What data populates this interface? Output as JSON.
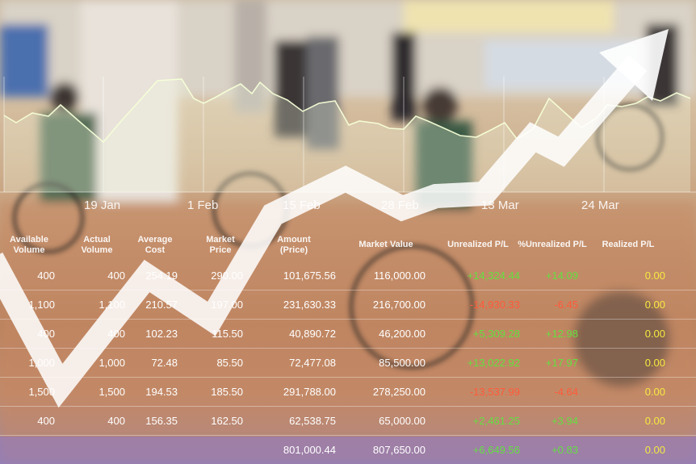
{
  "chart_data": {
    "type": "area",
    "x_labels": [
      "19 Jan",
      "1 Feb",
      "15 Feb",
      "28 Feb",
      "13 Mar",
      "24 Mar"
    ]
  },
  "table": {
    "headers": [
      "Available\nVolume",
      "Actual\nVolume",
      "Average\nCost",
      "Market\nPrice",
      "Amount\n(Price)",
      "Market Value",
      "Unrealized P/L",
      "%Unrealized P/L",
      "Realized P/L"
    ],
    "rows": [
      [
        "400",
        "400",
        "254.19",
        "290.00",
        "101,675.56",
        "116,000.00",
        "+14,324.44",
        "+14.09",
        "0.00"
      ],
      [
        "1,100",
        "1,100",
        "210.57",
        "197.00",
        "231,630.33",
        "216,700.00",
        "-14,930.33",
        "-6.45",
        "0.00"
      ],
      [
        "400",
        "400",
        "102.23",
        "115.50",
        "40,890.72",
        "46,200.00",
        "+5,309.28",
        "+12.98",
        "0.00"
      ],
      [
        "1,000",
        "1,000",
        "72.48",
        "85.50",
        "72,477.08",
        "85,500.00",
        "+13,022.92",
        "+17.97",
        "0.00"
      ],
      [
        "1,500",
        "1,500",
        "194.53",
        "185.50",
        "291,788.00",
        "278,250.00",
        "-13,537.99",
        "-4.64",
        "0.00"
      ],
      [
        "400",
        "400",
        "156.35",
        "162.50",
        "62,538.75",
        "65,000.00",
        "+2,461.25",
        "+3.94",
        "0.00"
      ]
    ],
    "total": [
      "801,000.44",
      "807,650.00",
      "+6,649.56",
      "+0.83",
      "0.00"
    ]
  },
  "colors": {
    "positive": "#62e040",
    "negative": "#ff5a3a",
    "realized": "#f4ea40"
  }
}
